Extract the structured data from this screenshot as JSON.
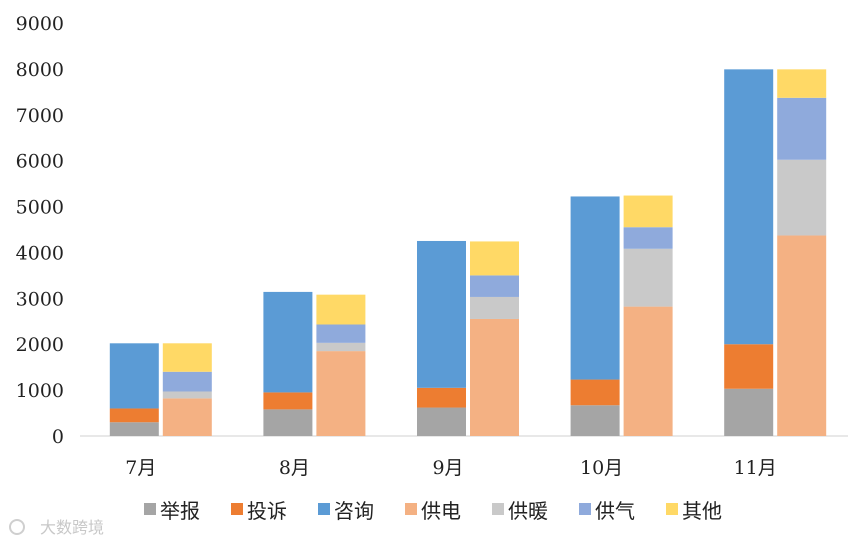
{
  "chart_data": {
    "type": "bar",
    "categories": [
      "7月",
      "8月",
      "9月",
      "10月",
      "11月"
    ],
    "stacks": [
      {
        "name": "stack-1",
        "series": [
          "举报",
          "投诉",
          "咨询"
        ]
      },
      {
        "name": "stack-2",
        "series": [
          "供电",
          "供暖",
          "供气",
          "其他"
        ]
      }
    ],
    "series": [
      {
        "name": "举报",
        "color": "#a5a5a5",
        "values": [
          300,
          580,
          620,
          670,
          1030
        ]
      },
      {
        "name": "投诉",
        "color": "#ed7d31",
        "values": [
          300,
          370,
          430,
          560,
          970
        ]
      },
      {
        "name": "咨询",
        "color": "#5b9bd5",
        "values": [
          1420,
          2190,
          3200,
          3990,
          5990
        ]
      },
      {
        "name": "供电",
        "color": "#f4b183",
        "values": [
          820,
          1850,
          2550,
          2820,
          4370
        ]
      },
      {
        "name": "供暖",
        "color": "#c9c9c9",
        "values": [
          150,
          180,
          480,
          1260,
          1650
        ]
      },
      {
        "name": "供气",
        "color": "#8faadc",
        "values": [
          430,
          400,
          470,
          470,
          1350
        ]
      },
      {
        "name": "其他",
        "color": "#ffd966",
        "values": [
          620,
          650,
          740,
          690,
          620
        ]
      }
    ],
    "yticks": [
      "0",
      "1000",
      "2000",
      "3000",
      "4000",
      "5000",
      "6000",
      "7000",
      "8000",
      "9000"
    ],
    "ylim": [
      0,
      9000
    ],
    "grid": false,
    "legend_position": "bottom"
  },
  "watermark": "大数跨境"
}
